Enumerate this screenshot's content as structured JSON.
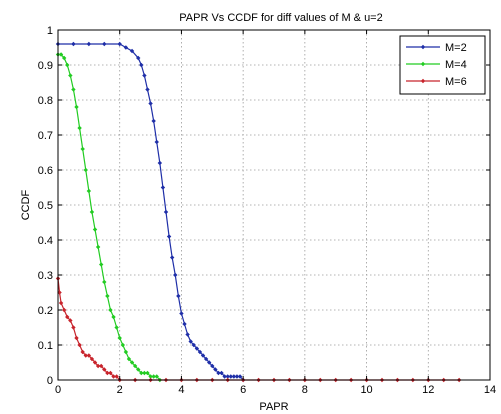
{
  "chart_data": {
    "type": "line",
    "title": "PAPR Vs CCDF for diff values of M & u=2",
    "xlabel": "PAPR",
    "ylabel": "CCDF",
    "xlim": [
      0,
      14
    ],
    "ylim": [
      0,
      1
    ],
    "xticks": [
      0,
      2,
      4,
      6,
      8,
      10,
      12,
      14
    ],
    "yticks": [
      0,
      0.1,
      0.2,
      0.3,
      0.4,
      0.5,
      0.6,
      0.7,
      0.8,
      0.9,
      1
    ],
    "xtick_labels": [
      "0",
      "2",
      "4",
      "6",
      "8",
      "10",
      "12",
      "14"
    ],
    "ytick_labels": [
      "0",
      "0.1",
      "0.2",
      "0.3",
      "0.4",
      "0.5",
      "0.6",
      "0.7",
      "0.8",
      "0.9",
      "1"
    ],
    "grid": true,
    "legend_position": "top-right",
    "series": [
      {
        "name": "M=2",
        "color": "#1f2fa8",
        "x": [
          0,
          0.5,
          1.0,
          1.5,
          2.0,
          2.2,
          2.4,
          2.6,
          2.7,
          2.8,
          2.9,
          3.0,
          3.1,
          3.2,
          3.3,
          3.4,
          3.5,
          3.6,
          3.7,
          3.8,
          3.9,
          4.0,
          4.1,
          4.2,
          4.3,
          4.4,
          4.5,
          4.6,
          4.7,
          4.8,
          4.9,
          5.0,
          5.1,
          5.2,
          5.3,
          5.4,
          5.5,
          5.6,
          5.7,
          5.8,
          5.9,
          6.0
        ],
        "y": [
          0.96,
          0.96,
          0.96,
          0.96,
          0.96,
          0.95,
          0.94,
          0.92,
          0.9,
          0.87,
          0.83,
          0.79,
          0.74,
          0.68,
          0.62,
          0.55,
          0.48,
          0.41,
          0.35,
          0.3,
          0.24,
          0.19,
          0.16,
          0.13,
          0.11,
          0.1,
          0.09,
          0.08,
          0.07,
          0.06,
          0.05,
          0.04,
          0.03,
          0.02,
          0.02,
          0.01,
          0.01,
          0.01,
          0.01,
          0.01,
          0.01,
          0.0
        ]
      },
      {
        "name": "M=4",
        "color": "#22cc22",
        "x": [
          0,
          0.1,
          0.2,
          0.3,
          0.4,
          0.5,
          0.6,
          0.7,
          0.8,
          0.9,
          1.0,
          1.1,
          1.2,
          1.3,
          1.4,
          1.5,
          1.6,
          1.7,
          1.8,
          1.9,
          2.0,
          2.1,
          2.2,
          2.3,
          2.4,
          2.5,
          2.6,
          2.7,
          2.8,
          2.9,
          3.0,
          3.1,
          3.2,
          3.3
        ],
        "y": [
          0.93,
          0.93,
          0.92,
          0.9,
          0.87,
          0.83,
          0.78,
          0.72,
          0.66,
          0.6,
          0.54,
          0.48,
          0.43,
          0.38,
          0.33,
          0.28,
          0.24,
          0.2,
          0.18,
          0.15,
          0.12,
          0.1,
          0.08,
          0.06,
          0.05,
          0.04,
          0.03,
          0.02,
          0.02,
          0.02,
          0.01,
          0.01,
          0.01,
          0.0
        ]
      },
      {
        "name": "M=6",
        "color": "#c8242c",
        "x": [
          0,
          0.05,
          0.1,
          0.2,
          0.3,
          0.4,
          0.5,
          0.6,
          0.7,
          0.8,
          0.9,
          1.0,
          1.1,
          1.2,
          1.3,
          1.4,
          1.5,
          1.6,
          1.7,
          1.8,
          1.9,
          2.0,
          2.5,
          3.0,
          3.5,
          4.0,
          4.5,
          5.0,
          5.5,
          6.0,
          6.5,
          7.0,
          7.5,
          8.0,
          8.5,
          9.0,
          9.5,
          10.0,
          10.5,
          11.0,
          11.5,
          12.0,
          12.5,
          13.0
        ],
        "y": [
          0.29,
          0.25,
          0.22,
          0.2,
          0.18,
          0.17,
          0.15,
          0.12,
          0.1,
          0.08,
          0.07,
          0.07,
          0.06,
          0.05,
          0.04,
          0.04,
          0.03,
          0.02,
          0.02,
          0.01,
          0.01,
          0.0,
          0.0,
          0.0,
          0.0,
          0.0,
          0.0,
          0.0,
          0.0,
          0.0,
          0.0,
          0.0,
          0.0,
          0.0,
          0.0,
          0.0,
          0.0,
          0.0,
          0.0,
          0.0,
          0.0,
          0.0,
          0.0,
          0.0
        ]
      }
    ]
  }
}
